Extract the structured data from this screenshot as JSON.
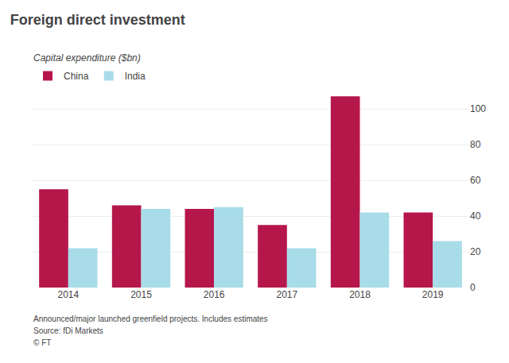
{
  "chart_data": {
    "type": "bar",
    "title": "Foreign direct investment",
    "subtitle": "Capital expenditure ($bn)",
    "categories": [
      "2014",
      "2015",
      "2016",
      "2017",
      "2018",
      "2019"
    ],
    "series": [
      {
        "name": "China",
        "color": "#b5174b",
        "values": [
          55,
          46,
          44,
          35,
          107,
          42
        ]
      },
      {
        "name": "India",
        "color": "#a8dce9",
        "values": [
          22,
          44,
          45,
          22,
          42,
          26
        ]
      }
    ],
    "ylim": [
      0,
      112
    ],
    "yticks": [
      0,
      20,
      40,
      60,
      80,
      100
    ],
    "grid": true,
    "legend": "upper left",
    "annotations": [
      "Announced/major launched greenfield projects. Includes estimates",
      "Source: fDi Markets",
      "© FT"
    ]
  }
}
